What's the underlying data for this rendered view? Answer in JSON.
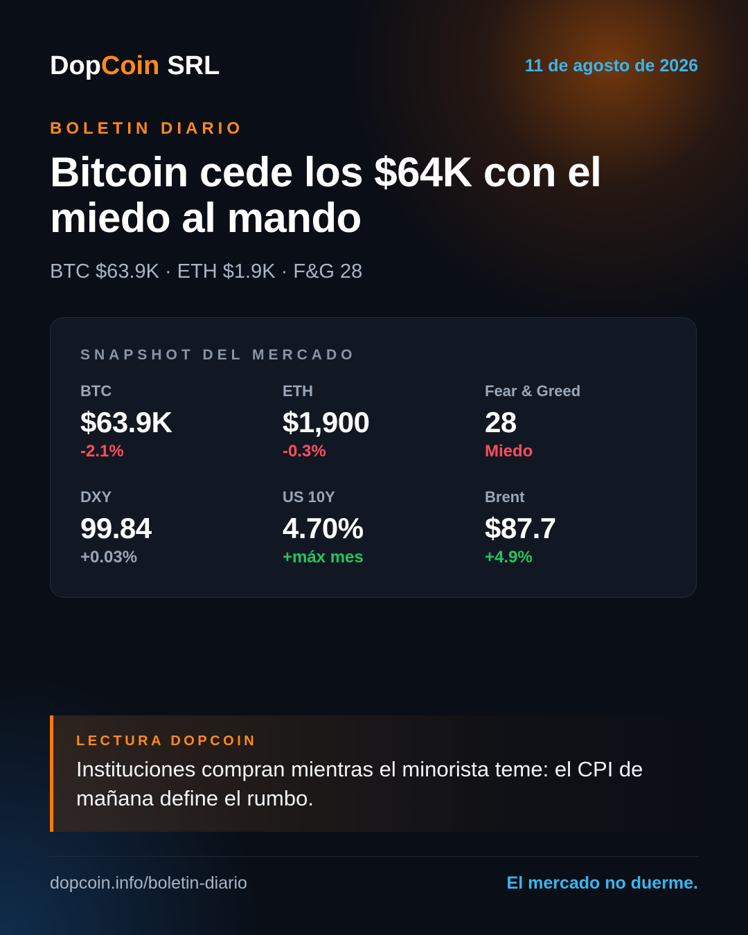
{
  "header": {
    "brand": {
      "prefix": "Dop",
      "highlight": "Coin",
      "suffix": "SRL",
      "highlight_color": "#ff8a1a"
    },
    "date": "11 de agosto de 2026"
  },
  "kicker": "BOLETIN DIARIO",
  "headline": "Bitcoin cede los $64K con el miedo al mando",
  "summary": "BTC $63.9K · ETH $1.9K · F&G 28",
  "snapshot": {
    "title": "SNAPSHOT DEL MERCADO",
    "metrics": [
      {
        "label": "BTC",
        "value": "$63.9K",
        "change": "-2.1%",
        "color": "#ff4d5e"
      },
      {
        "label": "ETH",
        "value": "$1,900",
        "change": "-0.3%",
        "color": "#ff4d5e"
      },
      {
        "label": "Fear & Greed",
        "value": "28",
        "change": "Miedo",
        "color": "#ff4d5e"
      },
      {
        "label": "DXY",
        "value": "99.84",
        "change": "+0.03%",
        "color": "#9aa6b8"
      },
      {
        "label": "US 10Y",
        "value": "4.70%",
        "change": "+máx mes",
        "color": "#22c55e"
      },
      {
        "label": "Brent",
        "value": "$87.7",
        "change": "+4.9%",
        "color": "#22c55e"
      }
    ]
  },
  "insight": {
    "label": "LECTURA DOPCOIN",
    "text": "Instituciones compran mientras el minorista teme: el CPI de mañana define el rumbo."
  },
  "footer": {
    "url": "dopcoin.info/boletin-diario",
    "tagline": "El mercado no duerme."
  }
}
